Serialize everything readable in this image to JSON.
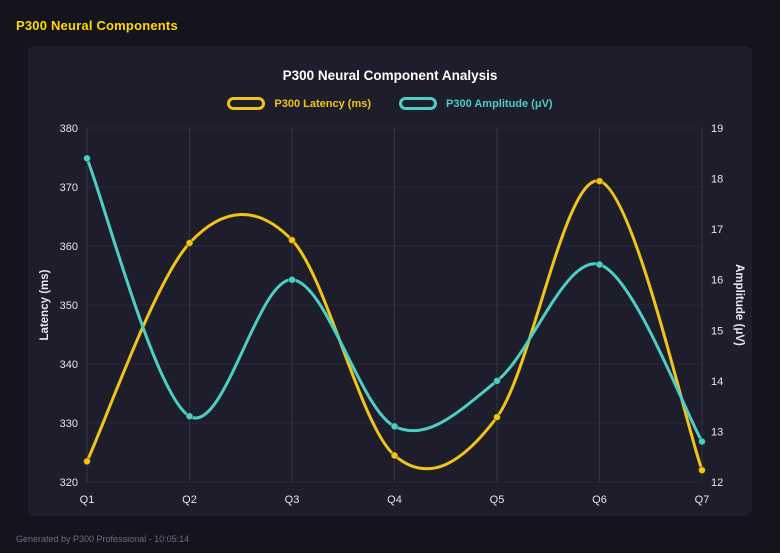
{
  "header": {
    "title": "P300 Neural Components"
  },
  "footer": {
    "text": "Generated by P300 Professional - 10:05:14"
  },
  "theme": {
    "page_bg": "#14141e",
    "panel_bg": "#1d1d2b",
    "accent_yellow": "#f0c419",
    "accent_teal": "#4ecdc4",
    "tick_color": "#e6e6f0",
    "grid_color_vertical": "rgba(255,255,255,0.10)",
    "grid_color_horizontal": "rgba(255,255,255,0.05)"
  },
  "chart_data": {
    "type": "line",
    "title": "P300 Neural Component Analysis",
    "categories": [
      "Q1",
      "Q2",
      "Q3",
      "Q4",
      "Q5",
      "Q6",
      "Q7"
    ],
    "series": [
      {
        "name": "P300 Latency (ms)",
        "color": "#f0c419",
        "axis": "left",
        "values": [
          323.5,
          360.5,
          361,
          324.5,
          331,
          371,
          322
        ]
      },
      {
        "name": "P300 Amplitude (μV)",
        "color": "#4ecdc4",
        "axis": "right",
        "values": [
          18.4,
          13.3,
          16.0,
          13.1,
          14.0,
          16.3,
          12.8
        ]
      }
    ],
    "axes": {
      "left": {
        "label": "Latency (ms)",
        "min": 320,
        "max": 380,
        "ticks": [
          320,
          330,
          340,
          350,
          360,
          370,
          380
        ]
      },
      "right": {
        "label": "Amplitude (μV)",
        "min": 12,
        "max": 19,
        "ticks": [
          12,
          13,
          14,
          15,
          16,
          17,
          18,
          19
        ]
      }
    },
    "grid": true,
    "legend_position": "top",
    "curve": "smooth"
  }
}
